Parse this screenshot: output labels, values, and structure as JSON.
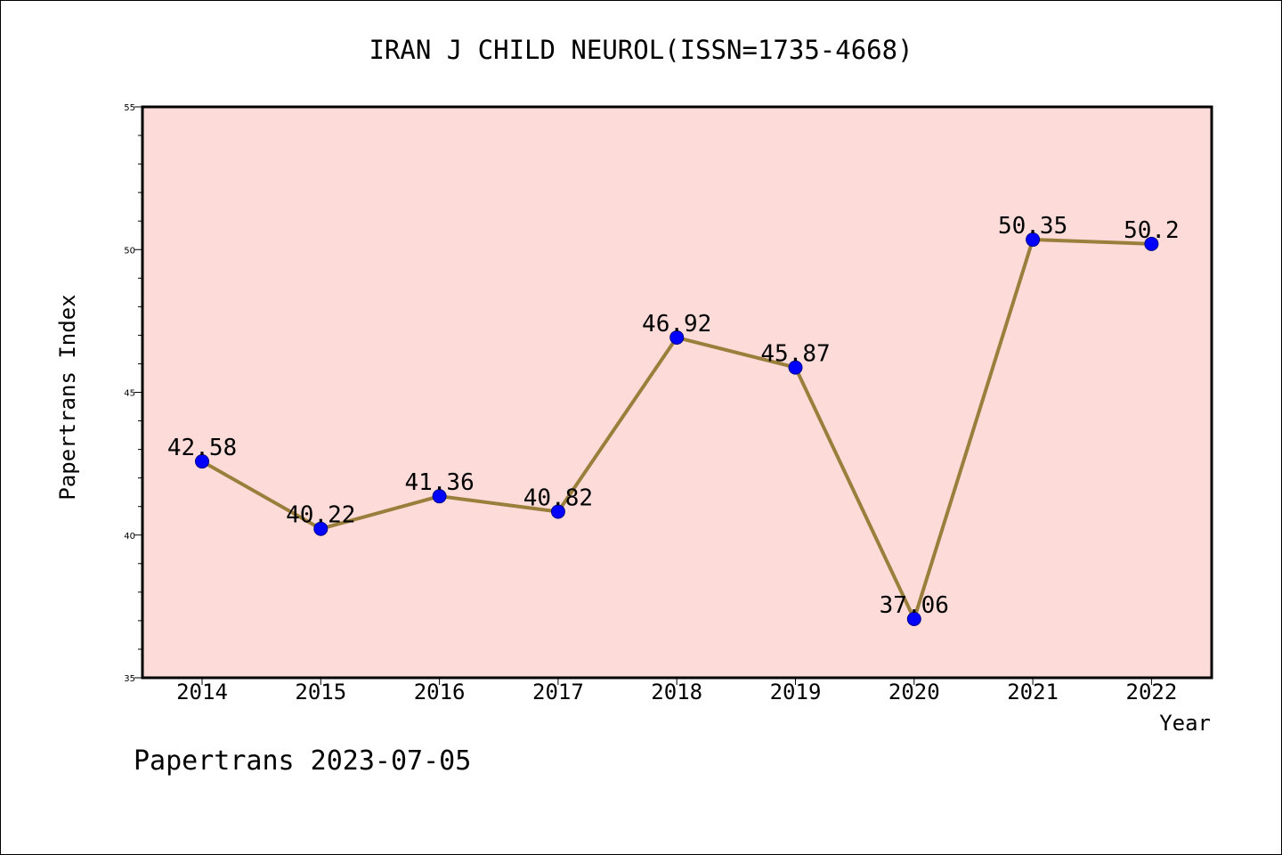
{
  "chart_data": {
    "type": "line",
    "title": "IRAN J CHILD NEUROL(ISSN=1735-4668)",
    "xlabel": "Year",
    "ylabel": "Papertrans Index",
    "categories": [
      "2014",
      "2015",
      "2016",
      "2017",
      "2018",
      "2019",
      "2020",
      "2021",
      "2022"
    ],
    "series": [
      {
        "values": [
          42.58,
          40.22,
          41.36,
          40.82,
          46.92,
          45.87,
          37.06,
          50.35,
          50.2
        ],
        "labels": [
          "42.58",
          "40.22",
          "41.36",
          "40.82",
          "46.92",
          "45.87",
          "37.06",
          "50.35",
          "50.2"
        ],
        "line_color": "#9a7f3c",
        "marker_color": "#0000ff"
      }
    ],
    "ylim": [
      35,
      55
    ],
    "yticks": [
      "35",
      "40",
      "45",
      "50",
      "55"
    ],
    "plot_background": "#fddbd8",
    "grid": false,
    "legend": "none"
  },
  "footer": "Papertrans 2023-07-05"
}
